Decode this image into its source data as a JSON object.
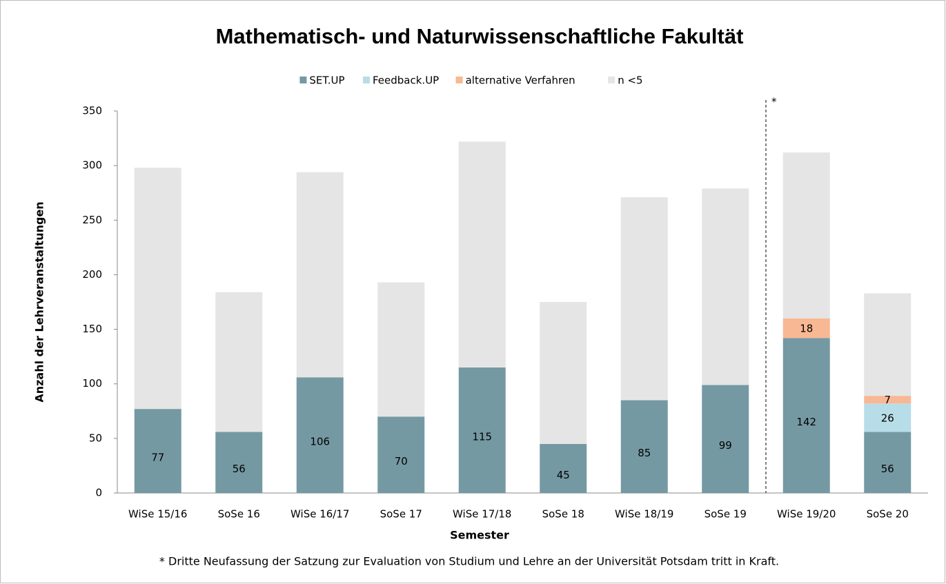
{
  "chart_data": {
    "type": "stacked_bar",
    "title": "Mathematisch- und Naturwissenschaftliche Fakultät",
    "x_label": "Semester",
    "y_label": "Anzahl der Lehrveranstaltungen",
    "annotation": "*",
    "footnote": "* Dritte Neufassung der Satzung zur Evaluation von Studium und Lehre an der Universität Potsdam tritt in Kraft.",
    "categories": [
      "WiSe 15/16",
      "SoSe 16",
      "WiSe 16/17",
      "SoSe 17",
      "WiSe 17/18",
      "SoSe 18",
      "WiSe 18/19",
      "SoSe 19",
      "WiSe 19/20",
      "SoSe 20"
    ],
    "series": [
      {
        "name": "SET.UP",
        "color": "#7599a3",
        "values": [
          77,
          56,
          106,
          70,
          115,
          45,
          85,
          99,
          142,
          56
        ],
        "labels": true
      },
      {
        "name": "Feedback.UP",
        "color": "#b7dde8",
        "values": [
          0,
          0,
          0,
          0,
          0,
          0,
          0,
          0,
          0,
          26
        ],
        "labels": true
      },
      {
        "name": "alternative Verfahren",
        "color": "#f8b893",
        "values": [
          0,
          0,
          0,
          0,
          0,
          0,
          0,
          0,
          18,
          7
        ],
        "labels": true
      },
      {
        "name": "n <5",
        "color": "#e5e5e5",
        "values": [
          221,
          128,
          188,
          123,
          207,
          130,
          186,
          180,
          152,
          94
        ],
        "labels": false
      }
    ],
    "ylim": [
      0,
      350
    ],
    "yticks": [
      0,
      50,
      100,
      150,
      200,
      250,
      300,
      350
    ],
    "grid": false,
    "legend": "top"
  }
}
